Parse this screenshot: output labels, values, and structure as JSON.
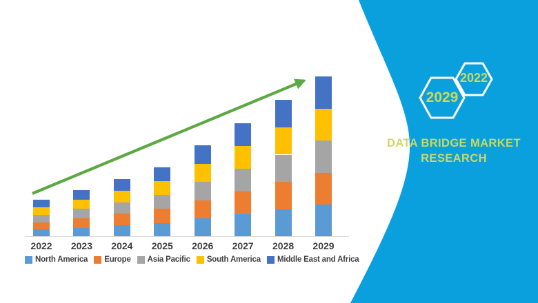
{
  "brand_panel": {
    "background_color": "#0aa0de",
    "accent_text_color": "#ccd95c",
    "hexagons": {
      "large_label": "2029",
      "small_label": "2022"
    },
    "brand_line1": "DATA BRIDGE MARKET",
    "brand_line2": "RESEARCH"
  },
  "chart_data": {
    "type": "bar",
    "stacked": true,
    "title": "",
    "categories": [
      "2022",
      "2023",
      "2024",
      "2025",
      "2026",
      "2027",
      "2028",
      "2029"
    ],
    "series": [
      {
        "name": "North America",
        "color": "#5B9BD5",
        "values": [
          4.6,
          5.8,
          7.2,
          8.7,
          11.4,
          14.2,
          17.1,
          20.0
        ]
      },
      {
        "name": "Europe",
        "color": "#ED7D31",
        "values": [
          4.6,
          5.8,
          7.2,
          8.7,
          11.4,
          14.2,
          17.1,
          20.0
        ]
      },
      {
        "name": "Asia Pacific",
        "color": "#A5A5A5",
        "values": [
          4.6,
          5.8,
          7.2,
          8.7,
          11.4,
          14.2,
          17.1,
          20.0
        ]
      },
      {
        "name": "South America",
        "color": "#FFC000",
        "values": [
          4.6,
          5.8,
          7.2,
          8.7,
          11.4,
          14.2,
          17.1,
          20.0
        ]
      },
      {
        "name": "Middle East and Africa",
        "color": "#4472C4",
        "values": [
          4.6,
          5.8,
          7.2,
          8.7,
          11.4,
          14.2,
          17.1,
          20.0
        ]
      }
    ],
    "value_scale": "relative index, 2029 total = 100",
    "legend_position": "bottom",
    "y_axis_visible": false,
    "gridlines": false,
    "x_axis_label_color": "#404040",
    "trend_arrow": {
      "color": "#5ca843",
      "direction": "up-right"
    }
  }
}
